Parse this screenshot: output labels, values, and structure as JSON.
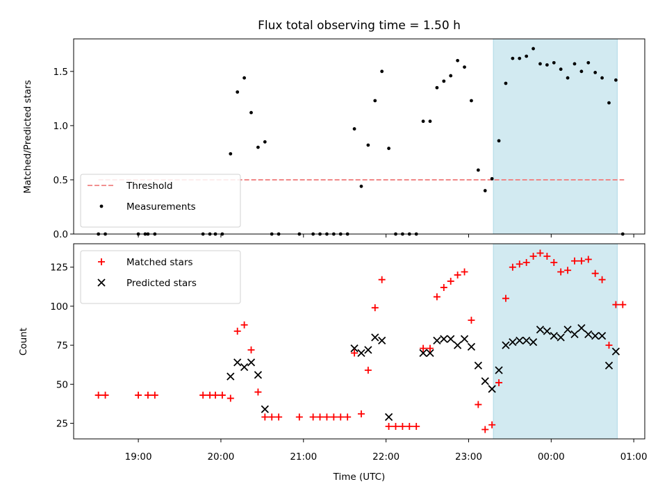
{
  "chart_data": [
    {
      "type": "scatter",
      "title": "Flux total observing time = 1.50 h",
      "ylabel": "Matched/Predicted stars",
      "ylim": [
        0,
        1.8
      ],
      "yticks": [
        0.0,
        0.5,
        1.0,
        1.5
      ],
      "ytick_labels": [
        "0.0",
        "0.5",
        "1.0",
        "1.5"
      ],
      "xlim": [
        "18:13",
        "01:08"
      ],
      "xticks": [
        "19:00",
        "20:00",
        "21:00",
        "22:00",
        "23:00",
        "00:00",
        "01:00"
      ],
      "shaded_span": [
        "23:18",
        "00:48"
      ],
      "shaded_color": "#add8e6",
      "threshold": {
        "name": "Threshold",
        "value": 0.5,
        "x_range": [
          "18:31",
          "00:53"
        ],
        "color": "#f08080"
      },
      "legend_position": "lower left",
      "series": [
        {
          "name": "Measurements",
          "marker": "dot",
          "color": "#000000",
          "points": [
            [
              "18:31",
              0.0
            ],
            [
              "18:36",
              0.0
            ],
            [
              "19:00",
              0.0
            ],
            [
              "19:05",
              0.0
            ],
            [
              "19:07",
              0.0
            ],
            [
              "19:12",
              0.0
            ],
            [
              "19:47",
              0.0
            ],
            [
              "19:52",
              0.0
            ],
            [
              "19:56",
              0.0
            ],
            [
              "20:01",
              0.0
            ],
            [
              "20:07",
              0.74
            ],
            [
              "20:12",
              1.31
            ],
            [
              "20:17",
              1.44
            ],
            [
              "20:22",
              1.12
            ],
            [
              "20:27",
              0.8
            ],
            [
              "20:32",
              0.85
            ],
            [
              "20:37",
              0.0
            ],
            [
              "20:42",
              0.0
            ],
            [
              "20:57",
              0.0
            ],
            [
              "21:07",
              0.0
            ],
            [
              "21:12",
              0.0
            ],
            [
              "21:17",
              0.0
            ],
            [
              "21:22",
              0.0
            ],
            [
              "21:27",
              0.0
            ],
            [
              "21:32",
              0.0
            ],
            [
              "21:37",
              0.97
            ],
            [
              "21:42",
              0.44
            ],
            [
              "21:47",
              0.82
            ],
            [
              "21:52",
              1.23
            ],
            [
              "21:57",
              1.5
            ],
            [
              "22:02",
              0.79
            ],
            [
              "22:07",
              0.0
            ],
            [
              "22:12",
              0.0
            ],
            [
              "22:17",
              0.0
            ],
            [
              "22:22",
              0.0
            ],
            [
              "22:27",
              1.04
            ],
            [
              "22:32",
              1.04
            ],
            [
              "22:37",
              1.35
            ],
            [
              "22:42",
              1.41
            ],
            [
              "22:47",
              1.46
            ],
            [
              "22:52",
              1.6
            ],
            [
              "22:57",
              1.54
            ],
            [
              "23:02",
              1.23
            ],
            [
              "23:07",
              0.59
            ],
            [
              "23:12",
              0.4
            ],
            [
              "23:17",
              0.51
            ],
            [
              "23:22",
              0.86
            ],
            [
              "23:27",
              1.39
            ],
            [
              "23:32",
              1.62
            ],
            [
              "23:37",
              1.62
            ],
            [
              "23:42",
              1.64
            ],
            [
              "23:47",
              1.71
            ],
            [
              "23:52",
              1.57
            ],
            [
              "23:57",
              1.56
            ],
            [
              "00:02",
              1.58
            ],
            [
              "00:07",
              1.52
            ],
            [
              "00:12",
              1.44
            ],
            [
              "00:17",
              1.57
            ],
            [
              "00:22",
              1.5
            ],
            [
              "00:27",
              1.58
            ],
            [
              "00:32",
              1.49
            ],
            [
              "00:37",
              1.44
            ],
            [
              "00:42",
              1.21
            ],
            [
              "00:47",
              1.42
            ],
            [
              "00:52",
              0.0
            ]
          ]
        }
      ]
    },
    {
      "type": "scatter",
      "title": "",
      "xlabel": "Time (UTC)",
      "ylabel": "Count",
      "ylim": [
        15,
        140
      ],
      "yticks": [
        25,
        50,
        75,
        100,
        125
      ],
      "xlim": [
        "18:13",
        "01:08"
      ],
      "xticks": [
        "19:00",
        "20:00",
        "21:00",
        "22:00",
        "23:00",
        "00:00",
        "01:00"
      ],
      "shaded_span": [
        "23:18",
        "00:48"
      ],
      "shaded_color": "#add8e6",
      "legend_position": "upper left",
      "series": [
        {
          "name": "Matched stars",
          "marker": "plus",
          "color": "#ff0000",
          "points": [
            [
              "18:31",
              43
            ],
            [
              "18:36",
              43
            ],
            [
              "19:00",
              43
            ],
            [
              "19:07",
              43
            ],
            [
              "19:12",
              43
            ],
            [
              "19:47",
              43
            ],
            [
              "19:52",
              43
            ],
            [
              "19:56",
              43
            ],
            [
              "20:01",
              43
            ],
            [
              "20:07",
              41
            ],
            [
              "20:12",
              84
            ],
            [
              "20:17",
              88
            ],
            [
              "20:22",
              72
            ],
            [
              "20:27",
              45
            ],
            [
              "20:32",
              29
            ],
            [
              "20:37",
              29
            ],
            [
              "20:42",
              29
            ],
            [
              "20:57",
              29
            ],
            [
              "21:07",
              29
            ],
            [
              "21:12",
              29
            ],
            [
              "21:17",
              29
            ],
            [
              "21:22",
              29
            ],
            [
              "21:27",
              29
            ],
            [
              "21:32",
              29
            ],
            [
              "21:37",
              70
            ],
            [
              "21:42",
              31
            ],
            [
              "21:47",
              59
            ],
            [
              "21:52",
              99
            ],
            [
              "21:57",
              117
            ],
            [
              "22:02",
              23
            ],
            [
              "22:07",
              23
            ],
            [
              "22:12",
              23
            ],
            [
              "22:17",
              23
            ],
            [
              "22:22",
              23
            ],
            [
              "22:27",
              73
            ],
            [
              "22:32",
              73
            ],
            [
              "22:37",
              106
            ],
            [
              "22:42",
              112
            ],
            [
              "22:47",
              116
            ],
            [
              "22:52",
              120
            ],
            [
              "22:57",
              122
            ],
            [
              "23:02",
              91
            ],
            [
              "23:07",
              37
            ],
            [
              "23:12",
              21
            ],
            [
              "23:17",
              24
            ],
            [
              "23:22",
              51
            ],
            [
              "23:27",
              105
            ],
            [
              "23:32",
              125
            ],
            [
              "23:37",
              127
            ],
            [
              "23:42",
              128
            ],
            [
              "23:47",
              132
            ],
            [
              "23:52",
              134
            ],
            [
              "23:57",
              132
            ],
            [
              "00:02",
              128
            ],
            [
              "00:07",
              122
            ],
            [
              "00:12",
              123
            ],
            [
              "00:17",
              129
            ],
            [
              "00:22",
              129
            ],
            [
              "00:27",
              130
            ],
            [
              "00:32",
              121
            ],
            [
              "00:37",
              117
            ],
            [
              "00:42",
              75
            ],
            [
              "00:47",
              101
            ],
            [
              "00:52",
              101
            ]
          ]
        },
        {
          "name": "Predicted stars",
          "marker": "x",
          "color": "#000000",
          "points": [
            [
              "20:07",
              55
            ],
            [
              "20:12",
              64
            ],
            [
              "20:17",
              61
            ],
            [
              "20:22",
              64
            ],
            [
              "20:27",
              56
            ],
            [
              "20:32",
              34
            ],
            [
              "21:37",
              73
            ],
            [
              "21:42",
              70
            ],
            [
              "21:47",
              72
            ],
            [
              "21:52",
              80
            ],
            [
              "21:57",
              78
            ],
            [
              "22:02",
              29
            ],
            [
              "22:27",
              70
            ],
            [
              "22:32",
              70
            ],
            [
              "22:37",
              78
            ],
            [
              "22:42",
              79
            ],
            [
              "22:47",
              79
            ],
            [
              "22:52",
              75
            ],
            [
              "22:57",
              79
            ],
            [
              "23:02",
              74
            ],
            [
              "23:07",
              62
            ],
            [
              "23:12",
              52
            ],
            [
              "23:17",
              47
            ],
            [
              "23:22",
              59
            ],
            [
              "23:27",
              75
            ],
            [
              "23:32",
              77
            ],
            [
              "23:37",
              78
            ],
            [
              "23:42",
              78
            ],
            [
              "23:47",
              77
            ],
            [
              "23:52",
              85
            ],
            [
              "23:57",
              84
            ],
            [
              "00:02",
              81
            ],
            [
              "00:07",
              80
            ],
            [
              "00:12",
              85
            ],
            [
              "00:17",
              82
            ],
            [
              "00:22",
              86
            ],
            [
              "00:27",
              82
            ],
            [
              "00:32",
              81
            ],
            [
              "00:37",
              81
            ],
            [
              "00:42",
              62
            ],
            [
              "00:47",
              71
            ]
          ]
        }
      ]
    }
  ]
}
